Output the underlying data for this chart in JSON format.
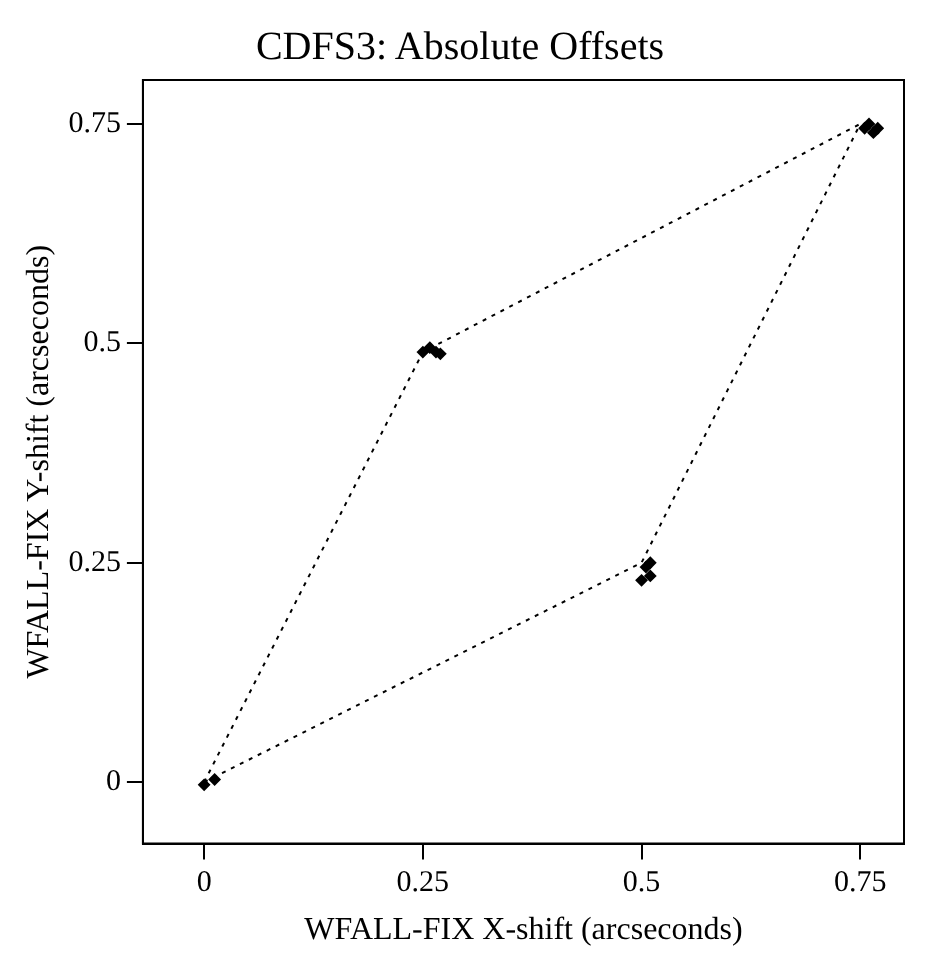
{
  "chart_data": {
    "type": "scatter",
    "title": "CDFS3: Absolute Offsets",
    "xlabel": "WFALL-FIX X-shift (arcseconds)",
    "ylabel": "WFALL-FIX Y-shift (arcseconds)",
    "xlim": [
      -0.07,
      0.8
    ],
    "ylim": [
      -0.07,
      0.8
    ],
    "xticks": [
      0,
      0.25,
      0.5,
      0.75
    ],
    "yticks": [
      0,
      0.25,
      0.5,
      0.75
    ],
    "grid": false,
    "legend": false,
    "marker": "diamond",
    "series": [
      {
        "type": "line",
        "color": "#000000",
        "line_style": "dotted",
        "marker": "none",
        "x": [
          0,
          0.25,
          0.75
        ],
        "values": [
          0,
          0.49,
          0.75
        ]
      },
      {
        "type": "line",
        "color": "#000000",
        "line_style": "dotted",
        "marker": "none",
        "x": [
          0,
          0.5,
          0.75
        ],
        "values": [
          0,
          0.25,
          0.75
        ]
      },
      {
        "color": "#000000",
        "x": [
          0,
          0.012,
          0.25,
          0.258,
          0.265,
          0.27,
          0.5,
          0.505,
          0.51,
          0.51,
          0.755,
          0.76,
          0.765,
          0.77
        ],
        "values": [
          -0.003,
          0.003,
          0.49,
          0.495,
          0.49,
          0.488,
          0.23,
          0.245,
          0.25,
          0.235,
          0.745,
          0.75,
          0.74,
          0.745
        ]
      }
    ]
  }
}
